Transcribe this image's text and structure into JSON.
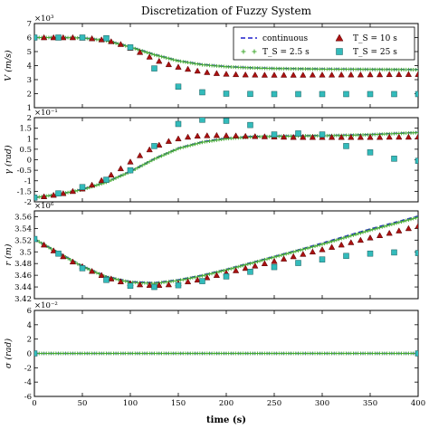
{
  "chart_data": {
    "type": "line",
    "title": "Discretization of Fuzzy System",
    "xlabel": "time (s)",
    "xlim": [
      0,
      400
    ],
    "xticks": [
      0,
      50,
      100,
      150,
      200,
      250,
      300,
      350,
      400
    ],
    "grid": false,
    "legend": {
      "placement": "top-right",
      "columns": 2,
      "entries": [
        {
          "series": "continuous",
          "label": "continuous",
          "marker": "dash",
          "color": "#1f1fcc"
        },
        {
          "series": "ts25",
          "label": "T_S = 2.5 s",
          "marker": "plus",
          "color": "#44aa33"
        },
        {
          "series": "ts10",
          "label": "T_S = 10 s",
          "marker": "triangle",
          "color": "#aa1111"
        },
        {
          "series": "ts25s",
          "label": "T_S = 25 s",
          "marker": "square",
          "color": "#33bbbb"
        }
      ]
    },
    "panels": [
      {
        "id": "V",
        "ylabel": "V (m/s)",
        "exponent": "×10³",
        "ylim": [
          1,
          7
        ],
        "yticks": [
          1,
          2,
          3,
          4,
          5,
          6,
          7
        ],
        "continuous": {
          "x": [
            0,
            25,
            50,
            75,
            100,
            125,
            150,
            175,
            200,
            225,
            250,
            275,
            300,
            325,
            350,
            375,
            400
          ],
          "y": [
            6.0,
            6.0,
            5.98,
            5.8,
            5.35,
            4.8,
            4.35,
            4.08,
            3.93,
            3.85,
            3.8,
            3.78,
            3.76,
            3.75,
            3.74,
            3.73,
            3.72
          ]
        },
        "ts25": {
          "x": [
            0,
            25,
            50,
            75,
            100,
            125,
            150,
            175,
            200,
            225,
            250,
            275,
            300,
            325,
            350,
            375,
            400
          ],
          "y": [
            6.0,
            6.0,
            5.97,
            5.78,
            5.32,
            4.77,
            4.33,
            4.06,
            3.92,
            3.84,
            3.79,
            3.77,
            3.75,
            3.74,
            3.73,
            3.72,
            3.71
          ]
        },
        "ts10": {
          "x": [
            0,
            10,
            20,
            30,
            40,
            50,
            60,
            70,
            80,
            90,
            100,
            110,
            120,
            130,
            140,
            150,
            160,
            170,
            180,
            190,
            200,
            210,
            220,
            230,
            240,
            250,
            260,
            270,
            280,
            290,
            300,
            310,
            320,
            330,
            340,
            350,
            360,
            370,
            380,
            390,
            400
          ],
          "y": [
            6.0,
            6.0,
            6.0,
            6.0,
            6.0,
            5.98,
            5.93,
            5.85,
            5.72,
            5.52,
            5.25,
            4.95,
            4.62,
            4.32,
            4.08,
            3.9,
            3.75,
            3.62,
            3.52,
            3.45,
            3.4,
            3.37,
            3.35,
            3.34,
            3.33,
            3.33,
            3.33,
            3.33,
            3.33,
            3.34,
            3.34,
            3.34,
            3.35,
            3.35,
            3.35,
            3.36,
            3.36,
            3.37,
            3.37,
            3.38,
            3.38
          ]
        },
        "ts25s": {
          "x": [
            0,
            25,
            50,
            75,
            100,
            125,
            150,
            175,
            200,
            225,
            250,
            275,
            300,
            325,
            350,
            375,
            400
          ],
          "y": [
            6.0,
            6.0,
            6.0,
            5.95,
            5.3,
            3.8,
            2.5,
            2.1,
            2.0,
            1.98,
            1.97,
            1.97,
            1.97,
            1.97,
            1.97,
            1.97,
            1.97
          ]
        }
      },
      {
        "id": "gamma",
        "ylabel": "γ (rad)",
        "exponent": "×10⁻¹",
        "ylim": [
          -2.0,
          2.0
        ],
        "yticks": [
          -2.0,
          -1.5,
          -1.0,
          -0.5,
          0.0,
          0.5,
          1.0,
          1.5,
          2.0
        ],
        "continuous": {
          "x": [
            0,
            25,
            50,
            75,
            100,
            125,
            150,
            175,
            200,
            225,
            250,
            275,
            300,
            325,
            350,
            375,
            400
          ],
          "y": [
            -1.8,
            -1.65,
            -1.4,
            -1.05,
            -0.55,
            0.05,
            0.55,
            0.85,
            1.02,
            1.1,
            1.12,
            1.14,
            1.15,
            1.17,
            1.2,
            1.25,
            1.3
          ]
        },
        "ts25": {
          "x": [
            0,
            25,
            50,
            75,
            100,
            125,
            150,
            175,
            200,
            225,
            250,
            275,
            300,
            325,
            350,
            375,
            400
          ],
          "y": [
            -1.8,
            -1.65,
            -1.42,
            -1.07,
            -0.57,
            0.03,
            0.53,
            0.83,
            1.0,
            1.08,
            1.11,
            1.13,
            1.14,
            1.16,
            1.19,
            1.24,
            1.29
          ]
        },
        "ts10": {
          "x": [
            0,
            10,
            20,
            30,
            40,
            50,
            60,
            70,
            80,
            90,
            100,
            110,
            120,
            130,
            140,
            150,
            160,
            170,
            180,
            190,
            200,
            210,
            220,
            230,
            240,
            250,
            260,
            270,
            280,
            290,
            300,
            310,
            320,
            330,
            340,
            350,
            360,
            370,
            380,
            390,
            400
          ],
          "y": [
            -1.8,
            -1.75,
            -1.68,
            -1.6,
            -1.5,
            -1.38,
            -1.2,
            -0.98,
            -0.72,
            -0.42,
            -0.1,
            0.2,
            0.48,
            0.7,
            0.88,
            1.0,
            1.08,
            1.13,
            1.15,
            1.16,
            1.15,
            1.14,
            1.12,
            1.11,
            1.1,
            1.09,
            1.08,
            1.07,
            1.07,
            1.07,
            1.07,
            1.07,
            1.07,
            1.07,
            1.07,
            1.07,
            1.07,
            1.08,
            1.08,
            1.08,
            1.09
          ]
        },
        "ts25s": {
          "x": [
            0,
            25,
            50,
            75,
            100,
            125,
            150,
            175,
            200,
            225,
            250,
            275,
            300,
            325,
            350,
            375,
            400
          ],
          "y": [
            -1.8,
            -1.6,
            -1.3,
            -0.95,
            -0.5,
            0.65,
            1.7,
            1.9,
            1.85,
            1.65,
            1.2,
            1.25,
            1.2,
            0.65,
            0.35,
            0.05,
            -0.05
          ]
        }
      },
      {
        "id": "r",
        "ylabel": "r (m)",
        "exponent": "×10⁶",
        "ylim": [
          3.42,
          3.57
        ],
        "yticks": [
          3.42,
          3.44,
          3.46,
          3.48,
          3.5,
          3.52,
          3.54,
          3.56
        ],
        "continuous": {
          "x": [
            0,
            25,
            50,
            75,
            100,
            125,
            150,
            175,
            200,
            225,
            250,
            275,
            300,
            325,
            350,
            375,
            400
          ],
          "y": [
            3.522,
            3.499,
            3.476,
            3.458,
            3.449,
            3.447,
            3.452,
            3.46,
            3.47,
            3.481,
            3.492,
            3.503,
            3.515,
            3.527,
            3.539,
            3.55,
            3.561
          ]
        },
        "ts25": {
          "x": [
            0,
            25,
            50,
            75,
            100,
            125,
            150,
            175,
            200,
            225,
            250,
            275,
            300,
            325,
            350,
            375,
            400
          ],
          "y": [
            3.522,
            3.498,
            3.475,
            3.457,
            3.448,
            3.446,
            3.451,
            3.459,
            3.469,
            3.48,
            3.491,
            3.502,
            3.513,
            3.525,
            3.537,
            3.548,
            3.559
          ]
        },
        "ts10": {
          "x": [
            0,
            10,
            20,
            30,
            40,
            50,
            60,
            70,
            80,
            90,
            100,
            110,
            120,
            130,
            140,
            150,
            160,
            170,
            180,
            190,
            200,
            210,
            220,
            230,
            240,
            250,
            260,
            270,
            280,
            290,
            300,
            310,
            320,
            330,
            340,
            350,
            360,
            370,
            380,
            390,
            400
          ],
          "y": [
            3.522,
            3.512,
            3.502,
            3.492,
            3.483,
            3.475,
            3.467,
            3.46,
            3.454,
            3.449,
            3.446,
            3.444,
            3.443,
            3.443,
            3.444,
            3.446,
            3.449,
            3.452,
            3.456,
            3.46,
            3.464,
            3.468,
            3.472,
            3.476,
            3.48,
            3.484,
            3.488,
            3.492,
            3.496,
            3.5,
            3.504,
            3.508,
            3.512,
            3.516,
            3.52,
            3.524,
            3.528,
            3.532,
            3.536,
            3.54,
            3.544
          ]
        },
        "ts25s": {
          "x": [
            0,
            25,
            50,
            75,
            100,
            125,
            150,
            175,
            200,
            225,
            250,
            275,
            300,
            325,
            350,
            375,
            400
          ],
          "y": [
            3.522,
            3.497,
            3.472,
            3.452,
            3.442,
            3.44,
            3.443,
            3.45,
            3.458,
            3.466,
            3.474,
            3.481,
            3.487,
            3.493,
            3.497,
            3.499,
            3.498
          ]
        }
      },
      {
        "id": "sigma",
        "ylabel": "σ (rad)",
        "exponent": "×10⁻²",
        "ylim": [
          -6,
          6
        ],
        "yticks": [
          -6,
          -4,
          -2,
          0,
          2,
          4,
          6
        ],
        "continuous": {
          "x": [
            0,
            400
          ],
          "y": [
            0,
            0
          ]
        },
        "ts25": {
          "x": [
            0,
            400
          ],
          "y": [
            0,
            0
          ]
        },
        "ts10": {
          "x": [
            0,
            400
          ],
          "y": [
            0,
            0
          ]
        },
        "ts25s": {
          "x": [
            0,
            400
          ],
          "y": [
            0,
            0
          ]
        }
      }
    ]
  }
}
